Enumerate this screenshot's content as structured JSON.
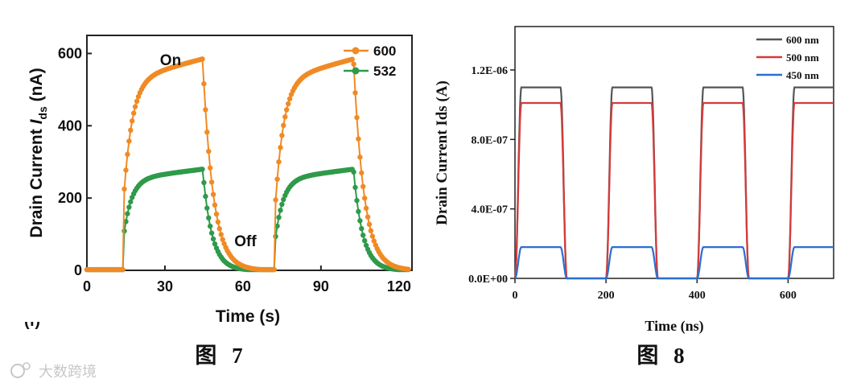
{
  "chart_data": [
    {
      "type": "line",
      "xlabel": "Time (s)",
      "ylabel": "Drain Current I_ds (nA)",
      "ylabel_main": "Drain Current ",
      "ylabel_italic": "I",
      "ylabel_sub": "ds",
      "ylabel_unit": " (nA)",
      "xlim": [
        0,
        125
      ],
      "ylim": [
        0,
        650
      ],
      "xticks": [
        0,
        30,
        60,
        90,
        120
      ],
      "yticks": [
        0,
        200,
        400,
        600
      ],
      "grid": false,
      "legend": "top-right",
      "annotations": [
        {
          "text": "On",
          "x": 31,
          "y": 635
        },
        {
          "text": "Off",
          "x": 60,
          "y": 78
        }
      ],
      "panel_mark": "(f)",
      "caption": "图 7",
      "cycles": [
        {
          "on": 14,
          "off": 44.5
        },
        {
          "on": 72.5,
          "off": 102.5
        }
      ],
      "series": [
        {
          "name": "600",
          "color": "#f08a24",
          "plateau": 585,
          "rise_tau": 3.2,
          "fall_tau": 4.0
        },
        {
          "name": "532",
          "color": "#2e9a4a",
          "plateau": 280,
          "rise_tau": 3.0,
          "fall_tau": 3.5
        }
      ]
    },
    {
      "type": "line",
      "xlabel": "Time (ns)",
      "ylabel": "Drain Current Ids (A)",
      "xlim": [
        0,
        700
      ],
      "ylim": [
        0,
        1.45e-06
      ],
      "xticks": [
        0,
        200,
        400,
        600
      ],
      "yticks": [
        0,
        4e-07,
        8e-07,
        1.2e-06
      ],
      "ytick_labels": [
        "0.0E+00",
        "4.0E-07",
        "8.0E-07",
        "1.2E-06"
      ],
      "grid": false,
      "legend": "top-right",
      "caption": "图 8",
      "period_ns": 200,
      "on_duration_ns": 100,
      "series": [
        {
          "name": "600 nm",
          "color": "#555555",
          "high": 1.1e-06,
          "low": 0
        },
        {
          "name": "500 nm",
          "color": "#d63a3a",
          "high": 1.01e-06,
          "low": 0
        },
        {
          "name": "450 nm",
          "color": "#2a6fd1",
          "high": 1.8e-07,
          "low": 0
        }
      ]
    }
  ],
  "watermark": "大数跨境"
}
